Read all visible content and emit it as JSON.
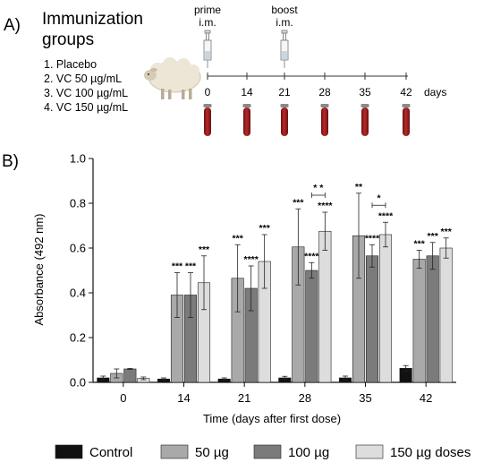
{
  "panel_a": {
    "label": "A)",
    "title_line1": "Immunization",
    "title_line2": "groups",
    "groups": [
      "1. Placebo",
      "2. VC 50 µg/mL",
      "3. VC 100 µg/mL",
      "4. VC 150 µg/mL"
    ],
    "prime_line1": "prime",
    "prime_line2": "i.m.",
    "boost_line1": "boost",
    "boost_line2": "i.m.",
    "timeline_days": [
      "0",
      "14",
      "21",
      "28",
      "35",
      "42"
    ],
    "days_label": "days"
  },
  "panel_b": {
    "label": "B)"
  },
  "colors": {
    "control": "#111111",
    "ug50": "#a9a9a9",
    "ug100": "#7b7b7b",
    "ug150": "#dddddd",
    "blood": "#9a1c1c"
  },
  "chart_data": {
    "type": "bar",
    "ylabel": "Absorbance (492 nm)",
    "xlabel": "Time (days after first dose)",
    "ylim": [
      0,
      1.0
    ],
    "yticks": [
      "0.0",
      "0.2",
      "0.4",
      "0.6",
      "0.8",
      "1.0"
    ],
    "categories": [
      "0",
      "14",
      "21",
      "28",
      "35",
      "42"
    ],
    "series": [
      {
        "name": "Control",
        "values": [
          0.02,
          0.015,
          0.015,
          0.02,
          0.02,
          0.063
        ],
        "errors": [
          0.008,
          0.005,
          0.005,
          0.007,
          0.008,
          0.012
        ]
      },
      {
        "name": "50 µg",
        "values": [
          0.04,
          0.39,
          0.465,
          0.605,
          0.655,
          0.55
        ],
        "errors": [
          0.02,
          0.1,
          0.15,
          0.17,
          0.19,
          0.04
        ]
      },
      {
        "name": "100 µg",
        "values": [
          0.06,
          0.39,
          0.42,
          0.5,
          0.565,
          0.565
        ],
        "errors": [
          0.002,
          0.1,
          0.1,
          0.035,
          0.05,
          0.06
        ]
      },
      {
        "name": "150 µg doses",
        "values": [
          0.018,
          0.445,
          0.54,
          0.675,
          0.66,
          0.6
        ],
        "errors": [
          0.006,
          0.12,
          0.12,
          0.085,
          0.055,
          0.045
        ]
      }
    ],
    "significance": [
      [
        "",
        "",
        "",
        ""
      ],
      [
        "",
        "***",
        "***",
        "***"
      ],
      [
        "",
        "***",
        "****",
        "***"
      ],
      [
        "",
        "***",
        "****",
        "****"
      ],
      [
        "",
        "**",
        "****",
        "****"
      ],
      [
        "",
        "***",
        "***",
        "***"
      ]
    ],
    "brackets": [
      {
        "category": "28",
        "label": "* *"
      },
      {
        "category": "35",
        "label": "*"
      }
    ],
    "legend": {
      "position": "bottom",
      "entries": [
        "Control",
        "50 µg",
        "100 µg",
        "150 µg doses"
      ]
    }
  }
}
